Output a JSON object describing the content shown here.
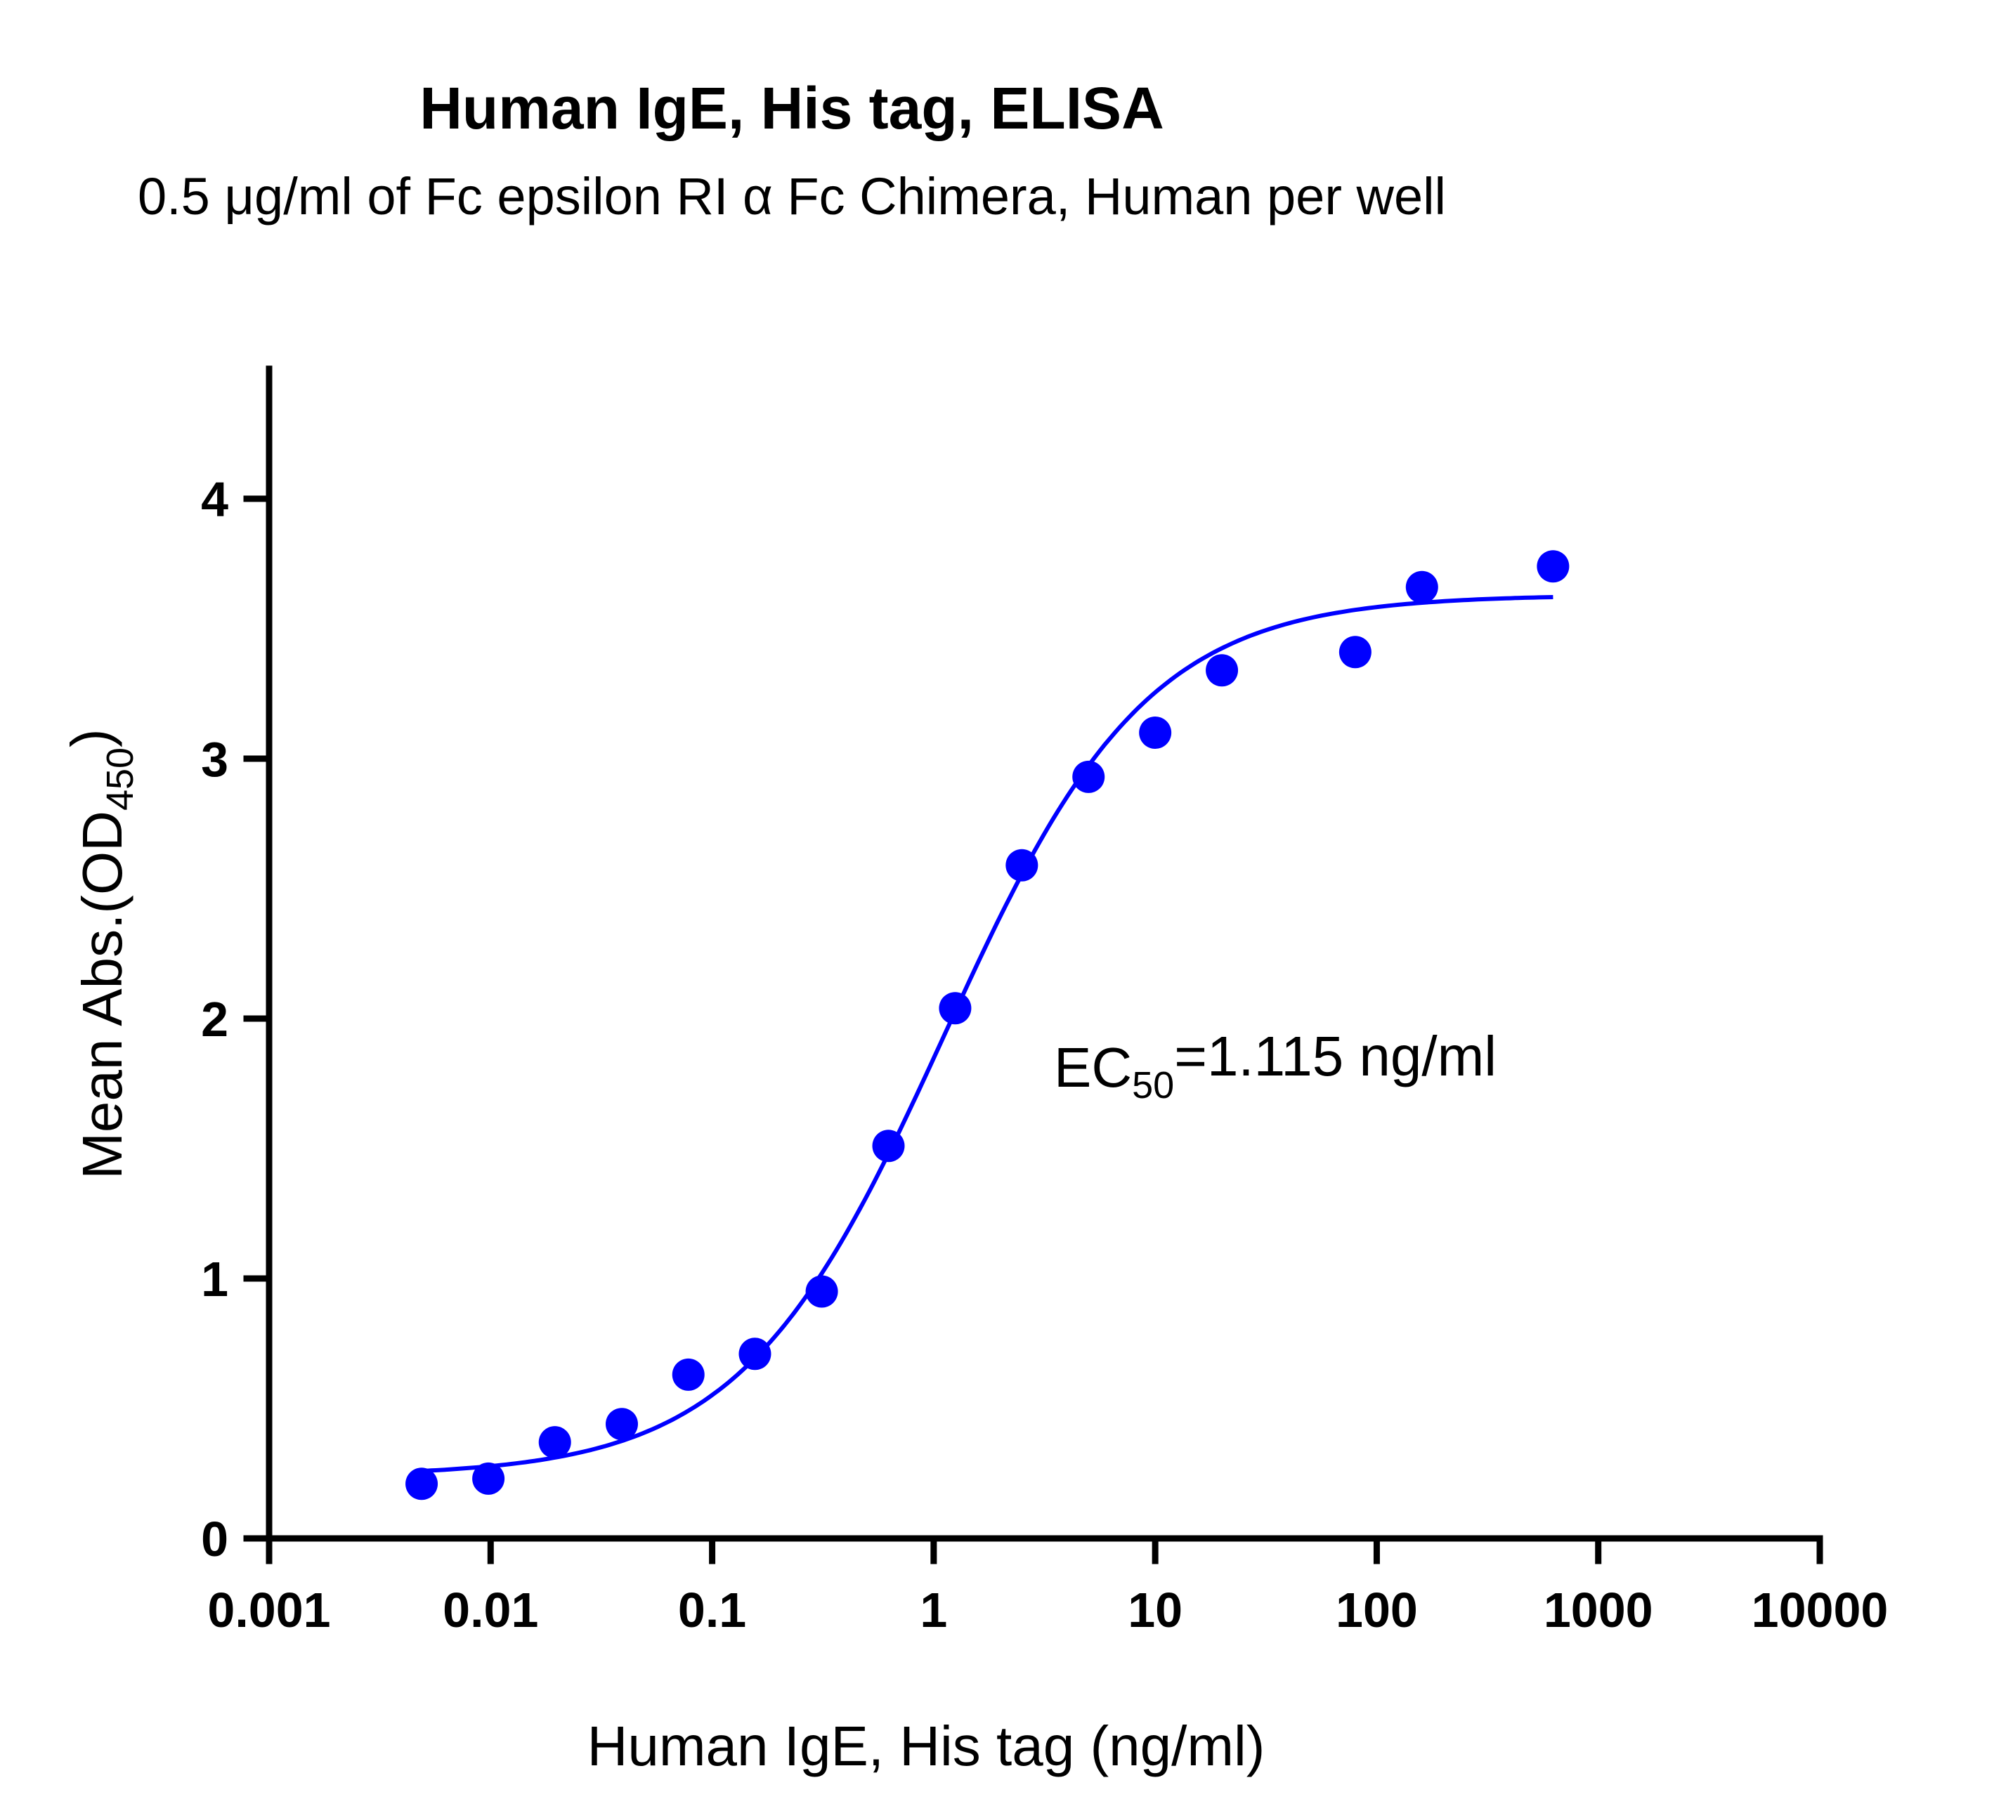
{
  "chart_data": {
    "type": "scatter",
    "title": "Human IgE, His tag, ELISA",
    "subtitle": "0.5 μg/ml of Fc epsilon RI α Fc Chimera, Human per well",
    "xlabel": "Human IgE, His tag (ng/ml)",
    "ylabel": {
      "main": "Mean Abs.(OD",
      "sub": "450",
      "close": ")"
    },
    "x_scale": "log",
    "xlim": [
      0.001,
      10000
    ],
    "ylim": [
      0,
      4.5
    ],
    "x_ticks": [
      {
        "value": 0.001,
        "label": "0.001"
      },
      {
        "value": 0.01,
        "label": "0.01"
      },
      {
        "value": 0.1,
        "label": "0.1"
      },
      {
        "value": 1,
        "label": "1"
      },
      {
        "value": 10,
        "label": "10"
      },
      {
        "value": 100,
        "label": "100"
      },
      {
        "value": 1000,
        "label": "1000"
      },
      {
        "value": 10000,
        "label": "10000"
      }
    ],
    "y_ticks": [
      {
        "value": 0,
        "label": "0"
      },
      {
        "value": 1,
        "label": "1"
      },
      {
        "value": 2,
        "label": "2"
      },
      {
        "value": 3,
        "label": "3"
      },
      {
        "value": 4,
        "label": "4"
      }
    ],
    "grid": false,
    "series": [
      {
        "color": "#0000ff",
        "points": [
          {
            "x": 0.00488,
            "y": 0.21
          },
          {
            "x": 0.00977,
            "y": 0.23
          },
          {
            "x": 0.0195,
            "y": 0.37
          },
          {
            "x": 0.0391,
            "y": 0.44
          },
          {
            "x": 0.0781,
            "y": 0.63
          },
          {
            "x": 0.156,
            "y": 0.71
          },
          {
            "x": 0.3125,
            "y": 0.95
          },
          {
            "x": 0.625,
            "y": 1.51
          },
          {
            "x": 1.25,
            "y": 2.04
          },
          {
            "x": 2.5,
            "y": 2.59
          },
          {
            "x": 5,
            "y": 2.93
          },
          {
            "x": 10,
            "y": 3.1
          },
          {
            "x": 20,
            "y": 3.34
          },
          {
            "x": 80,
            "y": 3.41
          },
          {
            "x": 160,
            "y": 3.66
          },
          {
            "x": 625,
            "y": 3.74
          }
        ],
        "fit": {
          "model": "4PL",
          "bottom": 0.24,
          "top": 3.63,
          "ec50": 1.115,
          "hill": 0.95,
          "x_range": [
            0.00488,
            625
          ]
        }
      }
    ],
    "annotation": {
      "prefix": "EC",
      "sub": "50",
      "suffix": "=1.115 ng/ml"
    },
    "legend": "none"
  }
}
